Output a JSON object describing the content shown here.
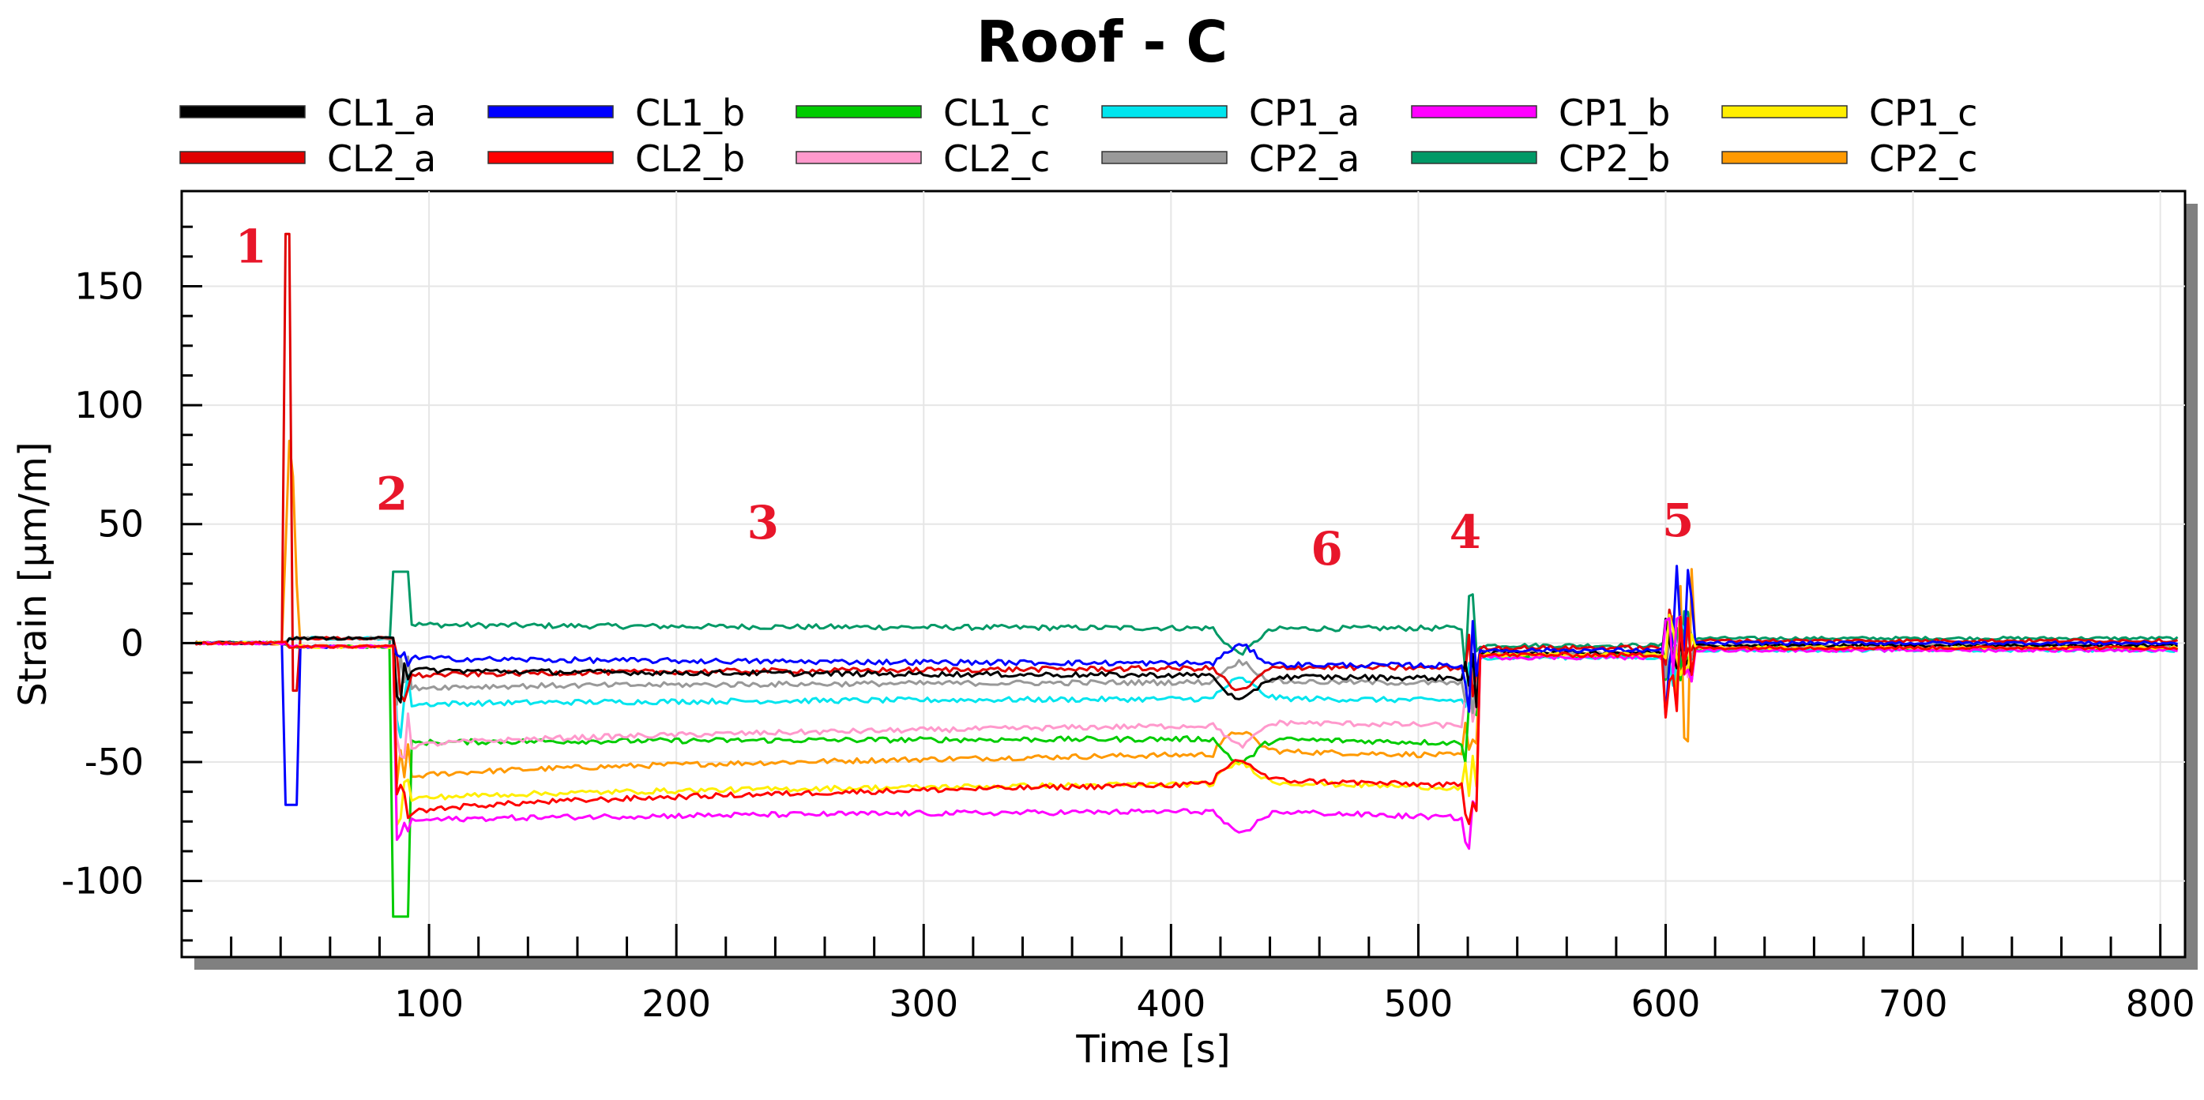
{
  "chart_data": {
    "type": "line",
    "title": "Roof - C",
    "xlabel": "Time [s]",
    "ylabel": "Strain [μm/m]",
    "xlim": [
      0,
      810
    ],
    "ylim": [
      -132,
      190
    ],
    "grid": true,
    "legend_position": "top",
    "x_ticks": [
      100,
      200,
      300,
      400,
      500,
      600,
      700,
      800
    ],
    "y_ticks": [
      -100,
      -50,
      0,
      50,
      100,
      150
    ],
    "x_tick_labels": [
      "100",
      "200",
      "300",
      "400",
      "500",
      "600",
      "700",
      "800"
    ],
    "y_tick_labels": [
      "-100",
      "-50",
      "0",
      "50",
      "100",
      "150"
    ],
    "series": [
      {
        "name": "CL1_a",
        "color": "#000000",
        "level": -11,
        "mid_level": -14,
        "post_level": -1
      },
      {
        "name": "CL1_b",
        "color": "#0000ff",
        "level": -6,
        "mid_level": -9,
        "post_level": 0
      },
      {
        "name": "CL1_c",
        "color": "#00cc00",
        "level": -42,
        "mid_level": -40,
        "post_level": -2
      },
      {
        "name": "CP1_a",
        "color": "#00e5ee",
        "level": -26,
        "mid_level": -23,
        "post_level": -3
      },
      {
        "name": "CP1_b",
        "color": "#ff00ff",
        "level": -75,
        "mid_level": -70,
        "post_level": -3
      },
      {
        "name": "CP1_c",
        "color": "#ffee00",
        "level": -66,
        "mid_level": -58,
        "post_level": -2
      },
      {
        "name": "CL2_a",
        "color": "#e00000",
        "level": -14,
        "mid_level": -10,
        "post_level": 1
      },
      {
        "name": "CL2_b",
        "color": "#ff0000",
        "level": -72,
        "mid_level": -57,
        "post_level": -2
      },
      {
        "name": "CL2_c",
        "color": "#ff99cc",
        "level": -44,
        "mid_level": -33,
        "post_level": -2
      },
      {
        "name": "CP2_a",
        "color": "#999999",
        "level": -19,
        "mid_level": -16,
        "post_level": -1
      },
      {
        "name": "CP2_b",
        "color": "#009966",
        "level": 8,
        "mid_level": 6,
        "post_level": 2
      },
      {
        "name": "CP2_c",
        "color": "#ff9900",
        "level": -57,
        "mid_level": -45,
        "post_level": -2
      }
    ],
    "annotations": [
      {
        "label": "1",
        "x": 28,
        "y": 160
      },
      {
        "label": "2",
        "x": 85,
        "y": 56
      },
      {
        "label": "3",
        "x": 235,
        "y": 44
      },
      {
        "label": "4",
        "x": 519,
        "y": 40
      },
      {
        "label": "5",
        "x": 605,
        "y": 45
      },
      {
        "label": "6",
        "x": 463,
        "y": 33
      }
    ]
  }
}
